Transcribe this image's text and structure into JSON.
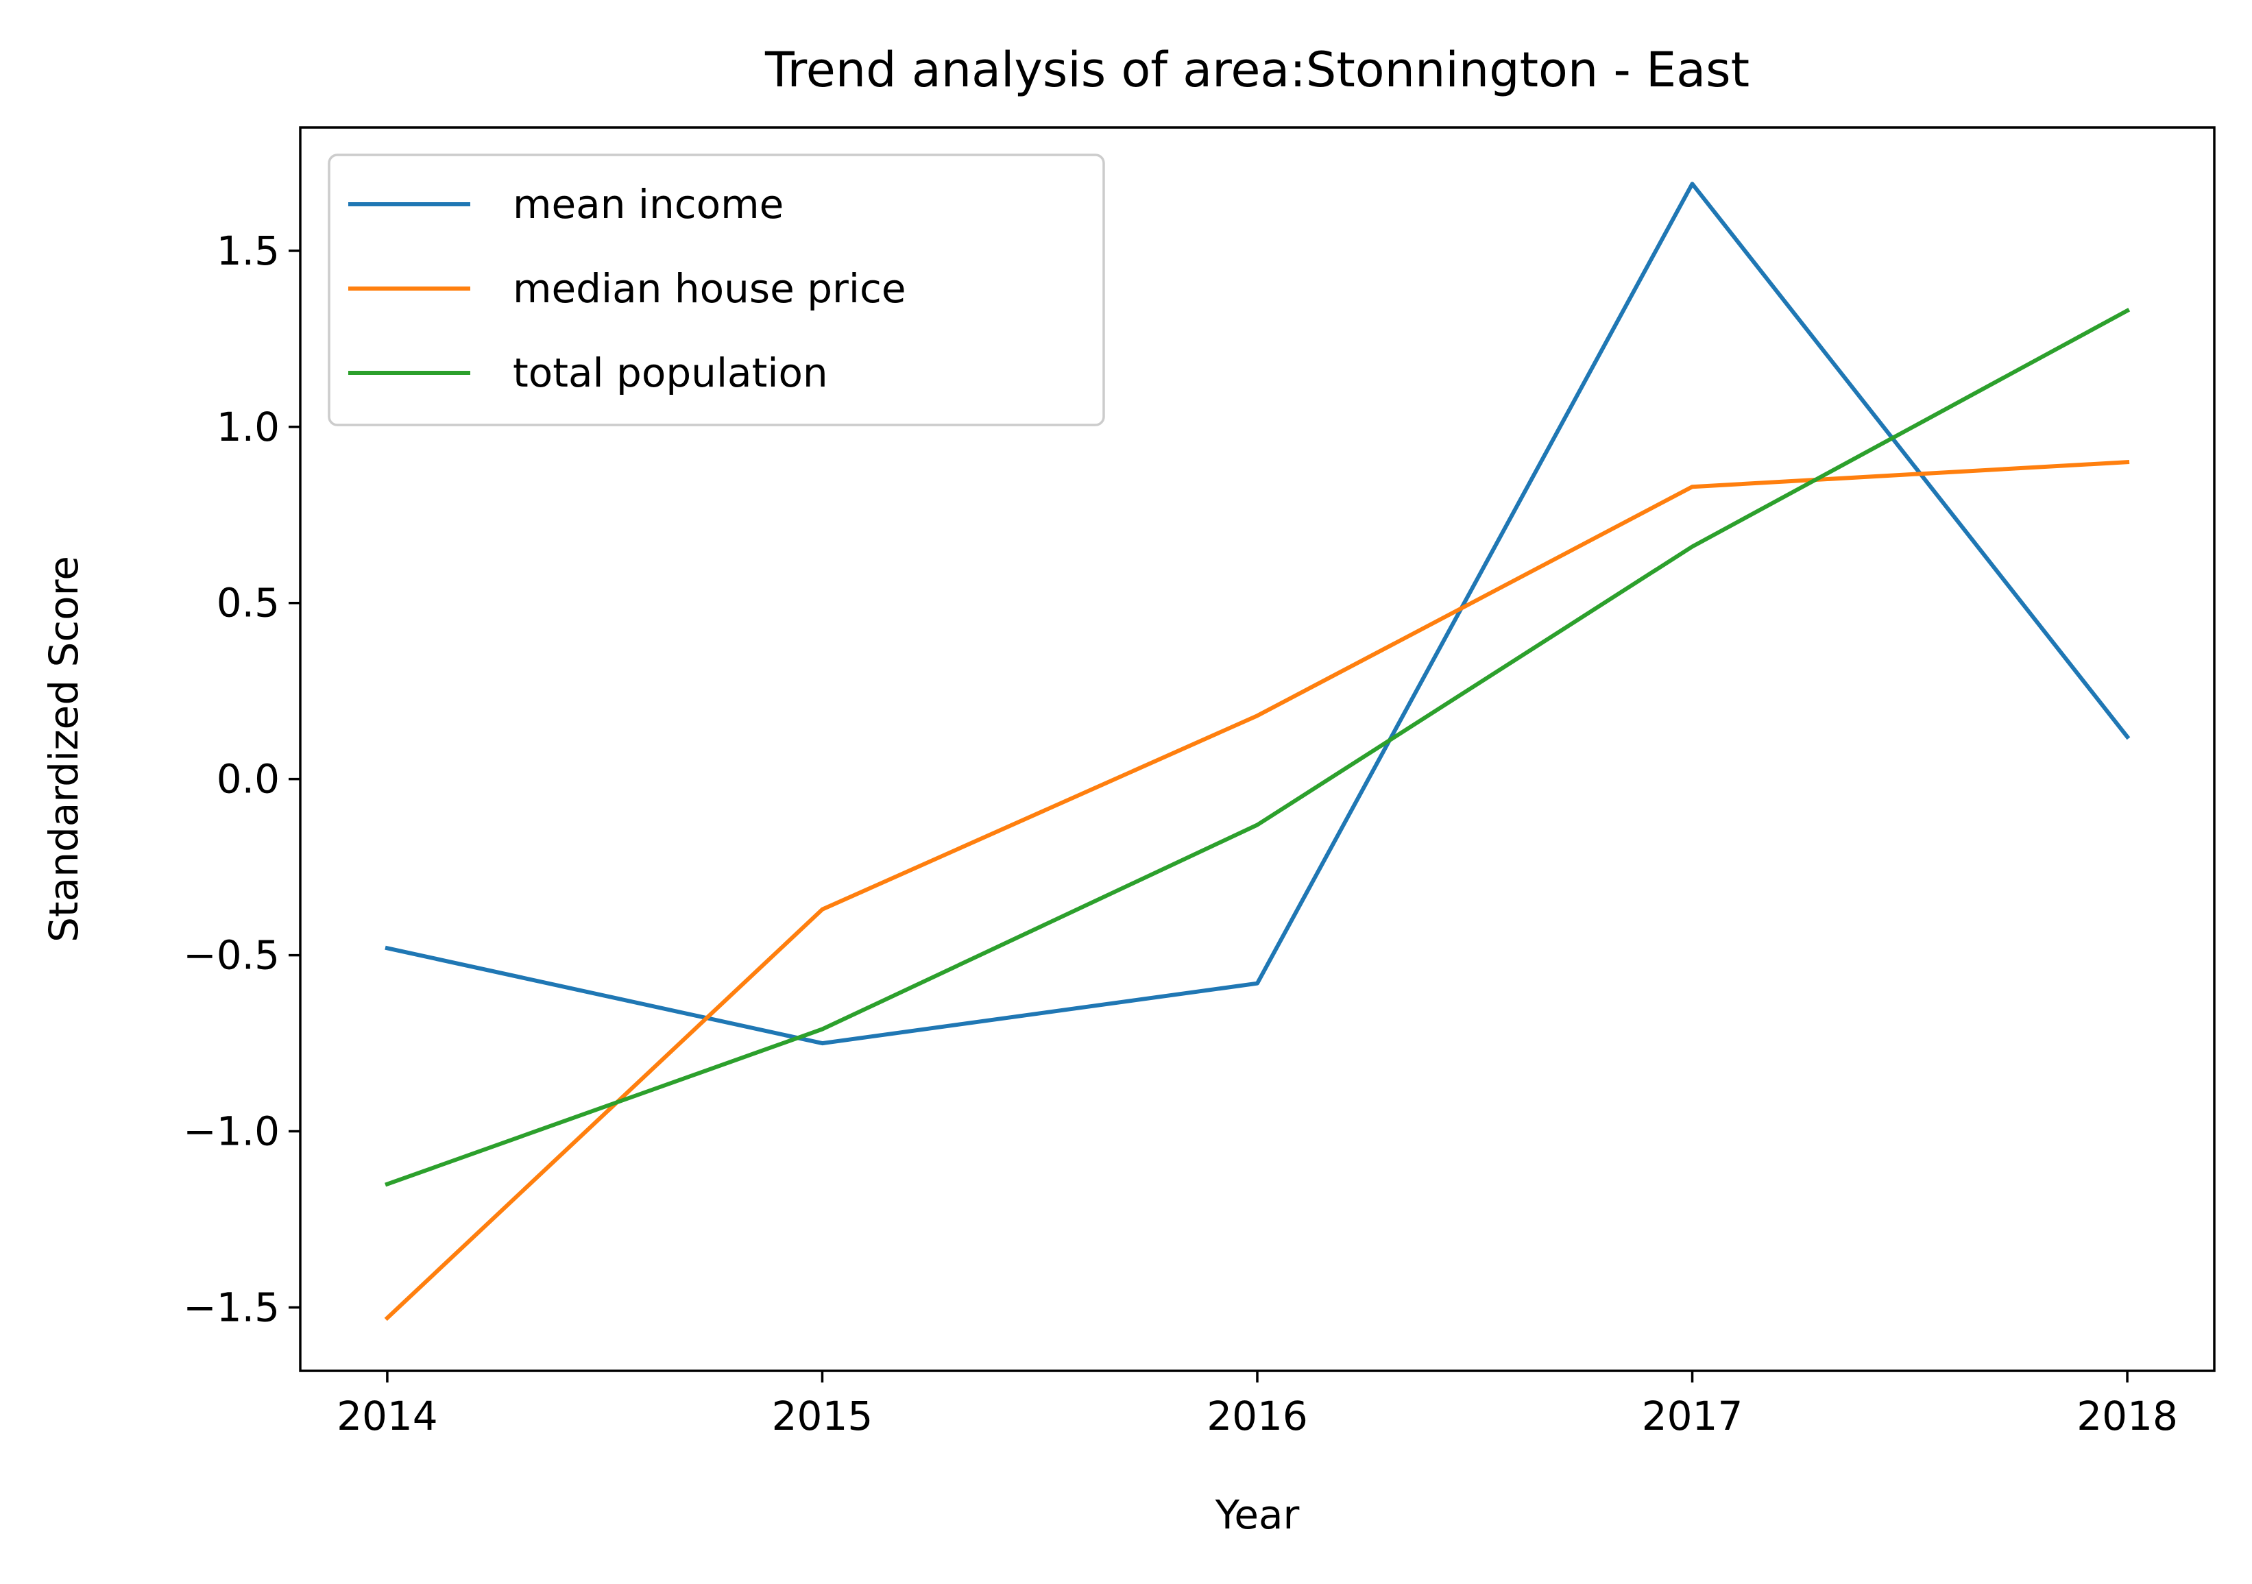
{
  "chart_data": {
    "type": "line",
    "title": "Trend analysis of area:Stonnington - East",
    "xlabel": "Year",
    "ylabel": "Standardized Score",
    "x": [
      2014,
      2015,
      2016,
      2017,
      2018
    ],
    "x_tick_labels": [
      "2014",
      "2015",
      "2016",
      "2017",
      "2018"
    ],
    "xlim": [
      2013.8,
      2018.2
    ],
    "ylim": [
      -1.68,
      1.85
    ],
    "y_ticks": [
      -1.5,
      -1.0,
      -0.5,
      0.0,
      0.5,
      1.0,
      1.5
    ],
    "y_tick_labels": [
      "−1.5",
      "−1.0",
      "−0.5",
      "0.0",
      "0.5",
      "1.0",
      "1.5"
    ],
    "grid": false,
    "legend_position": "upper-left",
    "series": [
      {
        "name": "mean income",
        "color": "#1f77b4",
        "values": [
          -0.48,
          -0.75,
          -0.58,
          1.69,
          0.12
        ]
      },
      {
        "name": "median house price",
        "color": "#ff7f0e",
        "values": [
          -1.53,
          -0.37,
          0.18,
          0.83,
          0.9
        ]
      },
      {
        "name": "total population",
        "color": "#2ca02c",
        "values": [
          -1.15,
          -0.71,
          -0.13,
          0.66,
          1.33
        ]
      }
    ]
  }
}
